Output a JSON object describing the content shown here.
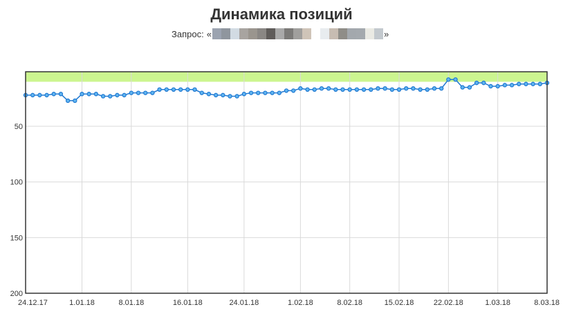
{
  "page": {
    "title": "Динамика позиций",
    "query_label": "Запрос:",
    "query_open": "«",
    "query_close": "»",
    "redaction_colors": [
      "#9ba3b0",
      "#8f969e",
      "#d2dbe3",
      "#a8a4a0",
      "#9a958e",
      "#8a8784",
      "#5f5c5a",
      "#a9a9a9",
      "#7b7a78",
      "#a09f9d",
      "#cfc4b8",
      "#ffffff",
      "#e8ecef",
      "#c7bcb2",
      "#8f8d88",
      "#a3a8ad",
      "#a4a9ae",
      "#eaeae4",
      "#c3c9ce"
    ]
  },
  "chart_data": {
    "type": "line",
    "title": "Динамика позиций",
    "subtitle": "Запрос: «»",
    "xlabel": "",
    "ylabel": "",
    "y_inverted": true,
    "ylim": [
      1,
      200
    ],
    "yticks": [
      "50",
      "100",
      "150",
      "200"
    ],
    "xticks": [
      "24.12.17",
      "1.01.18",
      "8.01.18",
      "16.01.18",
      "24.01.18",
      "1.02.18",
      "8.02.18",
      "15.02.18",
      "22.02.18",
      "1.03.18",
      "8.03.18"
    ],
    "top10_band": [
      1,
      10
    ],
    "colors": {
      "line": "#1f78d1",
      "band": "#ccf590",
      "grid": "#d9d9d9",
      "border": "#333333"
    },
    "x": [
      "24.12.17",
      "25.12.17",
      "26.12.17",
      "27.12.17",
      "28.12.17",
      "29.12.17",
      "30.12.17",
      "31.12.17",
      "1.01.18",
      "2.01.18",
      "3.01.18",
      "4.01.18",
      "5.01.18",
      "6.01.18",
      "7.01.18",
      "8.01.18",
      "9.01.18",
      "10.01.18",
      "11.01.18",
      "12.01.18",
      "13.01.18",
      "14.01.18",
      "15.01.18",
      "16.01.18",
      "17.01.18",
      "18.01.18",
      "19.01.18",
      "20.01.18",
      "21.01.18",
      "22.01.18",
      "23.01.18",
      "24.01.18",
      "25.01.18",
      "26.01.18",
      "27.01.18",
      "28.01.18",
      "29.01.18",
      "30.01.18",
      "31.01.18",
      "1.02.18",
      "2.02.18",
      "3.02.18",
      "4.02.18",
      "5.02.18",
      "6.02.18",
      "7.02.18",
      "8.02.18",
      "9.02.18",
      "10.02.18",
      "11.02.18",
      "12.02.18",
      "13.02.18",
      "14.02.18",
      "15.02.18",
      "16.02.18",
      "17.02.18",
      "18.02.18",
      "19.02.18",
      "20.02.18",
      "21.02.18",
      "22.02.18",
      "23.02.18",
      "24.02.18",
      "25.02.18",
      "26.02.18",
      "27.02.18",
      "28.02.18",
      "1.03.18",
      "2.03.18",
      "3.03.18",
      "4.03.18",
      "5.03.18",
      "6.03.18",
      "7.03.18",
      "8.03.18"
    ],
    "series": [
      {
        "values": [
          22,
          22,
          22,
          22,
          21,
          21,
          27,
          27,
          21,
          21,
          21,
          23,
          23,
          22,
          22,
          20,
          20,
          20,
          20,
          17,
          17,
          17,
          17,
          17,
          17,
          20,
          21,
          22,
          22,
          23,
          23,
          21,
          20,
          20,
          20,
          20,
          20,
          18,
          18,
          16,
          17,
          17,
          16,
          16,
          17,
          17,
          17,
          17,
          17,
          17,
          16,
          16,
          17,
          17,
          16,
          16,
          17,
          17,
          16,
          16,
          8,
          8,
          15,
          15,
          11,
          11,
          14,
          14,
          13,
          13,
          12,
          12,
          12,
          12,
          11
        ]
      }
    ]
  }
}
